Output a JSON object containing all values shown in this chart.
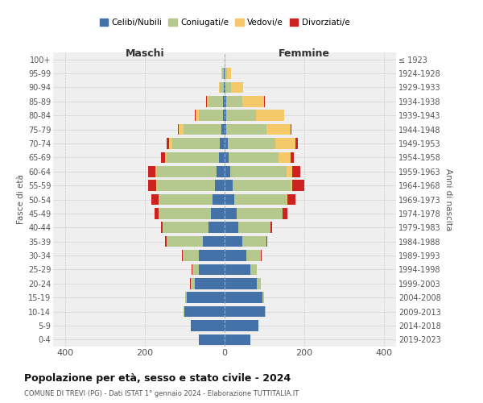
{
  "age_groups": [
    "0-4",
    "5-9",
    "10-14",
    "15-19",
    "20-24",
    "25-29",
    "30-34",
    "35-39",
    "40-44",
    "45-49",
    "50-54",
    "55-59",
    "60-64",
    "65-69",
    "70-74",
    "75-79",
    "80-84",
    "85-89",
    "90-94",
    "95-99",
    "100+"
  ],
  "birth_years": [
    "2019-2023",
    "2014-2018",
    "2009-2013",
    "2004-2008",
    "1999-2003",
    "1994-1998",
    "1989-1993",
    "1984-1988",
    "1979-1983",
    "1974-1978",
    "1969-1973",
    "1964-1968",
    "1959-1963",
    "1954-1958",
    "1949-1953",
    "1944-1948",
    "1939-1943",
    "1934-1938",
    "1929-1933",
    "1924-1928",
    "≤ 1923"
  ],
  "males": {
    "celibi": [
      65,
      85,
      100,
      95,
      75,
      65,
      65,
      55,
      40,
      35,
      30,
      25,
      20,
      15,
      12,
      8,
      5,
      5,
      2,
      2,
      0
    ],
    "coniugati": [
      0,
      0,
      2,
      3,
      10,
      15,
      40,
      90,
      115,
      130,
      135,
      145,
      150,
      130,
      120,
      95,
      60,
      35,
      10,
      5,
      0
    ],
    "vedovi": [
      0,
      0,
      0,
      0,
      0,
      0,
      0,
      0,
      0,
      1,
      1,
      2,
      3,
      5,
      8,
      12,
      8,
      5,
      3,
      2,
      0
    ],
    "divorziati": [
      0,
      0,
      0,
      0,
      1,
      2,
      3,
      5,
      5,
      10,
      18,
      20,
      18,
      10,
      5,
      2,
      1,
      1,
      0,
      0,
      0
    ]
  },
  "females": {
    "nubili": [
      65,
      85,
      100,
      95,
      80,
      65,
      55,
      45,
      35,
      30,
      25,
      20,
      15,
      10,
      8,
      5,
      4,
      4,
      2,
      1,
      0
    ],
    "coniugate": [
      0,
      0,
      2,
      3,
      10,
      15,
      35,
      60,
      80,
      115,
      130,
      145,
      140,
      125,
      120,
      100,
      75,
      40,
      15,
      5,
      0
    ],
    "vedove": [
      0,
      0,
      0,
      0,
      0,
      0,
      0,
      0,
      0,
      1,
      2,
      5,
      15,
      30,
      50,
      60,
      70,
      55,
      30,
      10,
      2
    ],
    "divorziate": [
      0,
      0,
      0,
      0,
      1,
      1,
      3,
      3,
      5,
      12,
      20,
      30,
      20,
      8,
      5,
      2,
      1,
      1,
      0,
      0,
      0
    ]
  },
  "colors": {
    "celibi": "#4472a8",
    "coniugati": "#b5c98e",
    "vedovi": "#f5c96a",
    "divorziati": "#cc2222"
  },
  "xlim": [
    -430,
    430
  ],
  "xticks": [
    -400,
    -200,
    0,
    200,
    400
  ],
  "xticklabels": [
    "400",
    "200",
    "0",
    "200",
    "400"
  ],
  "title": "Popolazione per età, sesso e stato civile - 2024",
  "subtitle": "COMUNE DI TREVI (PG) - Dati ISTAT 1° gennaio 2024 - Elaborazione TUTTITALIA.IT",
  "ylabel_left": "Fasce di età",
  "ylabel_right": "Anni di nascita",
  "maschi_label": "Maschi",
  "femmine_label": "Femmine",
  "legend_labels": [
    "Celibi/Nubili",
    "Coniugati/e",
    "Vedovi/e",
    "Divorziati/e"
  ],
  "bg_color": "#ffffff",
  "plot_bg_color": "#efefef",
  "grid_color": "#cccccc"
}
